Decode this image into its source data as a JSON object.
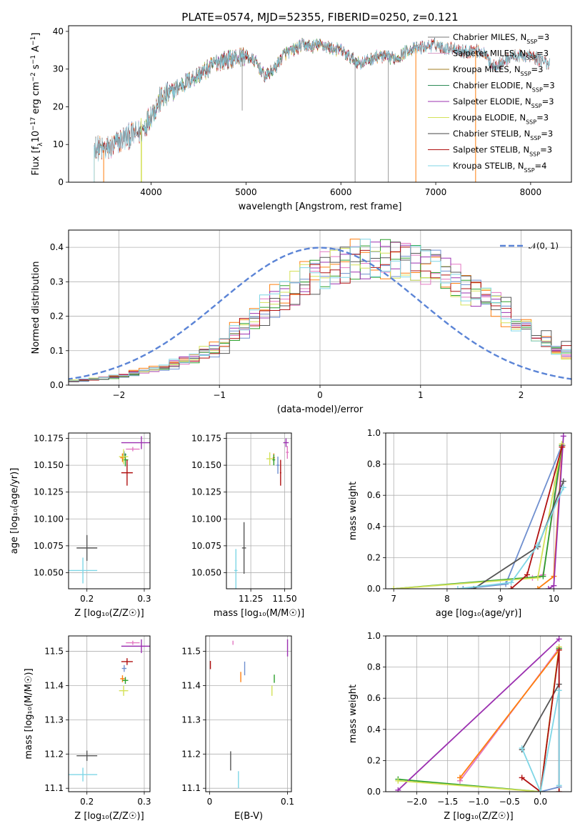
{
  "figure": {
    "title": "PLATE=0574, MJD=52355, FIBERID=0250, z=0.121"
  },
  "legend_entries": [
    {
      "text": "Chabrier MILES, N",
      "sub": "SSP",
      "suffix": "=3",
      "color": "#7a7a7a"
    },
    {
      "text": "Salpeter MILES, N",
      "sub": "SSP",
      "suffix": "=3",
      "color": "#d9a0c8"
    },
    {
      "text": "Kroupa MILES, N",
      "sub": "SSP",
      "suffix": "=3",
      "color": "#a07d20"
    },
    {
      "text": "Chabrier ELODIE, N",
      "sub": "SSP",
      "suffix": "=3",
      "color": "#2e8b57"
    },
    {
      "text": "Salpeter ELODIE, N",
      "sub": "SSP",
      "suffix": "=3",
      "color": "#9b30b0"
    },
    {
      "text": "Kroupa ELODIE, N",
      "sub": "SSP",
      "suffix": "=3",
      "color": "#d4e157"
    },
    {
      "text": "Chabrier STELIB, N",
      "sub": "SSP",
      "suffix": "=3",
      "color": "#444444"
    },
    {
      "text": "Salpeter STELIB, N",
      "sub": "SSP",
      "suffix": "=3",
      "color": "#b01010"
    },
    {
      "text": "Kroupa STELIB, N",
      "sub": "SSP",
      "suffix": "=4",
      "color": "#7fd6e6"
    }
  ],
  "colors": {
    "chabrier_miles": "#6f8fcf",
    "salpeter_miles": "#e377c2",
    "kroupa_miles": "#ff7f0e",
    "chabrier_elodie": "#2ca02c",
    "salpeter_elodie": "#9b30b0",
    "kroupa_elodie": "#d4e157",
    "chabrier_stelib": "#555555",
    "salpeter_stelib": "#b01010",
    "kroupa_stelib": "#7fd6e6",
    "gaussian": "#5b84d6"
  },
  "chart_data": [
    {
      "id": "spectrum",
      "type": "line",
      "xlabel": "wavelength [Angstrom, rest frame]",
      "ylabel_parts": [
        "Flux [f",
        "λ",
        "10",
        "−17",
        " erg cm",
        "−2",
        " s",
        "−1",
        " A",
        "−1",
        "]"
      ],
      "xlim": [
        3130,
        8430
      ],
      "ylim": [
        0,
        41.5
      ],
      "xticks": [
        4000,
        5000,
        6000,
        7000,
        8000
      ],
      "yticks": [
        0,
        10,
        20,
        30,
        40
      ],
      "grid": false,
      "continuum_x": [
        3400,
        3500,
        3600,
        3700,
        3800,
        3900,
        4000,
        4100,
        4200,
        4300,
        4400,
        4500,
        4600,
        4700,
        4800,
        4900,
        5000,
        5100,
        5200,
        5300,
        5400,
        5500,
        5600,
        5700,
        5800,
        5900,
        6000,
        6100,
        6200,
        6300,
        6400,
        6500,
        6600,
        6700,
        6800,
        6900,
        7000,
        7100,
        7200,
        7300,
        7400,
        7500,
        7600,
        7700,
        7800,
        7900,
        8000,
        8100,
        8200
      ],
      "continuum_y": [
        9.5,
        8.5,
        9.5,
        11.5,
        12.5,
        13.5,
        18,
        22,
        23.5,
        25.5,
        27,
        28.5,
        30,
        32,
        32.5,
        33,
        33.5,
        32,
        28,
        30,
        34,
        35,
        36.5,
        36,
        36.5,
        35.5,
        35,
        33,
        31.5,
        32.5,
        33.5,
        33,
        33,
        35,
        35.5,
        36,
        36.5,
        35.5,
        35.5,
        34.5,
        35,
        34.5,
        31,
        31.5,
        33.5,
        33.5,
        33.5,
        32.5,
        31.5
      ],
      "series": [
        {
          "key": "chabrier_miles",
          "start": 3500,
          "end": 8100
        },
        {
          "key": "salpeter_miles",
          "start": 3400,
          "end": 8100
        },
        {
          "key": "kroupa_miles",
          "start": 3400,
          "end": 8100
        },
        {
          "key": "chabrier_elodie",
          "start": 3900,
          "end": 6800
        },
        {
          "key": "salpeter_elodie",
          "start": 3900,
          "end": 6800
        },
        {
          "key": "kroupa_elodie",
          "start": 3900,
          "end": 6800
        },
        {
          "key": "chabrier_stelib",
          "start": 3400,
          "end": 8200
        },
        {
          "key": "salpeter_stelib",
          "start": 3400,
          "end": 8200
        },
        {
          "key": "kroupa_stelib",
          "start": 3400,
          "end": 8200
        }
      ],
      "spikes": [
        4960,
        6150,
        6500,
        6790,
        7420
      ]
    },
    {
      "id": "residuals",
      "type": "line",
      "xlabel": "(data-model)/error",
      "ylabel": "Normed distribution",
      "xlim": [
        -2.5,
        2.5
      ],
      "ylim": [
        0,
        0.45
      ],
      "xticks": [
        -2,
        -1,
        0,
        1,
        2
      ],
      "xtick_labels": [
        "−2",
        "−1",
        "0",
        "1",
        "2"
      ],
      "yticks": [
        0.0,
        0.1,
        0.2,
        0.3,
        0.4
      ],
      "grid": true,
      "legend": {
        "label": "𝒩(0, 1)",
        "placement": "top-right"
      },
      "gaussian": {
        "mean": 0,
        "sigma": 1
      },
      "bin_width": 0.1,
      "mean_histogram_x": [
        -2.5,
        -2.0,
        -1.5,
        -1.0,
        -0.5,
        0.0,
        0.5,
        1.0,
        1.5,
        2.0,
        2.5
      ],
      "mean_histogram_y": [
        0.01,
        0.025,
        0.055,
        0.11,
        0.23,
        0.33,
        0.37,
        0.35,
        0.28,
        0.18,
        0.09
      ]
    },
    {
      "id": "age_vs_z",
      "type": "scatter",
      "xlabel": "Z [log₁₀(Z/Z☉)]",
      "ylabel": "age  [log₁₀(age/yr)]",
      "xlim": [
        0.168,
        0.31
      ],
      "ylim": [
        10.035,
        10.18
      ],
      "xticks": [
        0.2,
        0.3
      ],
      "yticks": [
        10.05,
        10.075,
        10.1,
        10.125,
        10.15,
        10.175
      ],
      "ytick_labels": [
        "10.050",
        "10.075",
        "10.100",
        "10.125",
        "10.150",
        "10.175"
      ],
      "grid": true,
      "points": [
        {
          "key": "chabrier_miles",
          "x": 0.265,
          "y": 10.16,
          "xerr": 0.004,
          "yerr": 0.003
        },
        {
          "key": "salpeter_miles",
          "x": 0.28,
          "y": 10.165,
          "xerr": 0.012,
          "yerr": 0.002
        },
        {
          "key": "kroupa_miles",
          "x": 0.262,
          "y": 10.157,
          "xerr": 0.004,
          "yerr": 0.004
        },
        {
          "key": "chabrier_elodie",
          "x": 0.267,
          "y": 10.155,
          "xerr": 0.005,
          "yerr": 0.006
        },
        {
          "key": "salpeter_elodie",
          "x": 0.295,
          "y": 10.171,
          "xerr": 0.035,
          "yerr": 0.006
        },
        {
          "key": "kroupa_elodie",
          "x": 0.264,
          "y": 10.158,
          "xerr": 0.008,
          "yerr": 0.007
        },
        {
          "key": "chabrier_stelib",
          "x": 0.2,
          "y": 10.073,
          "xerr": 0.018,
          "yerr": 0.012
        },
        {
          "key": "salpeter_stelib",
          "x": 0.27,
          "y": 10.143,
          "xerr": 0.01,
          "yerr": 0.012
        },
        {
          "key": "kroupa_stelib",
          "x": 0.193,
          "y": 10.052,
          "xerr": 0.025,
          "yerr": 0.012
        }
      ]
    },
    {
      "id": "age_vs_mass",
      "type": "scatter",
      "xlabel": "mass [log₁₀(M/M☉)]",
      "xlim": [
        11.07,
        11.55
      ],
      "ylim": [
        10.035,
        10.18
      ],
      "xticks": [
        11.25,
        11.5
      ],
      "xtick_labels": [
        "11.25",
        "11.50"
      ],
      "yticks": [
        10.05,
        10.075,
        10.1,
        10.125,
        10.15,
        10.175
      ],
      "ytick_labels": [
        "10.050",
        "10.075",
        "10.100",
        "10.125",
        "10.150",
        "10.175"
      ],
      "grid": true,
      "points": [
        {
          "key": "chabrier_miles",
          "x": 11.45,
          "y": 10.15,
          "xerr": 0.01,
          "yerr": 0.008
        },
        {
          "key": "salpeter_miles",
          "x": 11.52,
          "y": 10.162,
          "xerr": 0.01,
          "yerr": 0.006
        },
        {
          "key": "kroupa_miles",
          "x": 11.42,
          "y": 10.157,
          "xerr": 0.008,
          "yerr": 0.004
        },
        {
          "key": "chabrier_elodie",
          "x": 11.42,
          "y": 10.155,
          "xerr": 0.01,
          "yerr": 0.005
        },
        {
          "key": "salpeter_elodie",
          "x": 11.51,
          "y": 10.171,
          "xerr": 0.02,
          "yerr": 0.004
        },
        {
          "key": "kroupa_elodie",
          "x": 11.39,
          "y": 10.156,
          "xerr": 0.025,
          "yerr": 0.006
        },
        {
          "key": "chabrier_stelib",
          "x": 11.2,
          "y": 10.073,
          "xerr": 0.015,
          "yerr": 0.024
        },
        {
          "key": "salpeter_stelib",
          "x": 11.47,
          "y": 10.143,
          "xerr": 0.005,
          "yerr": 0.012
        },
        {
          "key": "kroupa_stelib",
          "x": 11.14,
          "y": 10.052,
          "xerr": 0.012,
          "yerr": 0.02
        }
      ]
    },
    {
      "id": "mass_vs_z",
      "type": "scatter",
      "xlabel": "Z [log₁₀(Z/Z☉)]",
      "ylabel": "mass [log₁₀(M/M☉)]",
      "xlim": [
        0.168,
        0.31
      ],
      "ylim": [
        11.09,
        11.545
      ],
      "xticks": [
        0.2,
        0.3
      ],
      "yticks": [
        11.1,
        11.2,
        11.3,
        11.4,
        11.5
      ],
      "grid": true,
      "points": [
        {
          "key": "chabrier_miles",
          "x": 0.265,
          "y": 11.45,
          "xerr": 0.004,
          "yerr": 0.01
        },
        {
          "key": "salpeter_miles",
          "x": 0.28,
          "y": 11.525,
          "xerr": 0.012,
          "yerr": 0.006
        },
        {
          "key": "kroupa_miles",
          "x": 0.262,
          "y": 11.42,
          "xerr": 0.004,
          "yerr": 0.01
        },
        {
          "key": "chabrier_elodie",
          "x": 0.267,
          "y": 11.415,
          "xerr": 0.005,
          "yerr": 0.01
        },
        {
          "key": "salpeter_elodie",
          "x": 0.295,
          "y": 11.515,
          "xerr": 0.035,
          "yerr": 0.02
        },
        {
          "key": "kroupa_elodie",
          "x": 0.264,
          "y": 11.385,
          "xerr": 0.008,
          "yerr": 0.015
        },
        {
          "key": "chabrier_stelib",
          "x": 0.2,
          "y": 11.195,
          "xerr": 0.018,
          "yerr": 0.015
        },
        {
          "key": "salpeter_stelib",
          "x": 0.27,
          "y": 11.47,
          "xerr": 0.01,
          "yerr": 0.01
        },
        {
          "key": "kroupa_stelib",
          "x": 0.193,
          "y": 11.14,
          "xerr": 0.025,
          "yerr": 0.02
        }
      ]
    },
    {
      "id": "mass_vs_ebv",
      "type": "scatter",
      "xlabel": "E(B-V)",
      "xlim": [
        -0.005,
        0.105
      ],
      "ylim": [
        11.09,
        11.545
      ],
      "xticks": [
        0.0,
        0.1
      ],
      "yticks": [
        11.1,
        11.2,
        11.3,
        11.4,
        11.5
      ],
      "grid": true,
      "points": [
        {
          "key": "chabrier_miles",
          "x": 0.045,
          "y": 11.45,
          "yerr": 0.02
        },
        {
          "key": "salpeter_miles",
          "x": 0.03,
          "y": 11.525,
          "yerr": 0.006
        },
        {
          "key": "kroupa_miles",
          "x": 0.04,
          "y": 11.425,
          "yerr": 0.015
        },
        {
          "key": "chabrier_elodie",
          "x": 0.083,
          "y": 11.42,
          "yerr": 0.012
        },
        {
          "key": "salpeter_elodie",
          "x": 0.1,
          "y": 11.51,
          "yerr": 0.025
        },
        {
          "key": "kroupa_elodie",
          "x": 0.08,
          "y": 11.385,
          "yerr": 0.015
        },
        {
          "key": "chabrier_stelib",
          "x": 0.027,
          "y": 11.18,
          "yerr": 0.028
        },
        {
          "key": "salpeter_stelib",
          "x": 0.001,
          "y": 11.46,
          "yerr": 0.012
        },
        {
          "key": "kroupa_stelib",
          "x": 0.037,
          "y": 11.125,
          "yerr": 0.025
        }
      ]
    },
    {
      "id": "mass_weight_vs_age",
      "type": "line",
      "xlabel": "age  [log₁₀(age/yr)]",
      "ylabel": "mass weight",
      "xlim": [
        6.85,
        10.33
      ],
      "ylim": [
        0,
        1.0
      ],
      "xticks": [
        7,
        8,
        9,
        10
      ],
      "yticks": [
        0.0,
        0.2,
        0.4,
        0.6,
        0.8,
        1.0
      ],
      "grid": true,
      "series": [
        {
          "key": "chabrier_miles",
          "x": [
            8.3,
            9.1,
            10.15
          ],
          "y": [
            0.0,
            0.03,
            0.92
          ]
        },
        {
          "key": "salpeter_miles",
          "x": [
            9.6,
            9.8,
            10.17
          ],
          "y": [
            0.07,
            0.09,
            0.92
          ]
        },
        {
          "key": "kroupa_miles",
          "x": [
            9.7,
            10.0,
            10.16
          ],
          "y": [
            0.0,
            0.08,
            0.91
          ]
        },
        {
          "key": "chabrier_elodie",
          "x": [
            7.0,
            9.8,
            10.15
          ],
          "y": [
            0.0,
            0.08,
            0.92
          ]
        },
        {
          "key": "salpeter_elodie",
          "x": [
            9.9,
            10.0,
            10.18
          ],
          "y": [
            0.0,
            0.02,
            0.98
          ]
        },
        {
          "key": "kroupa_elodie",
          "x": [
            7.0,
            9.7,
            10.15
          ],
          "y": [
            0.0,
            0.07,
            0.93
          ]
        },
        {
          "key": "chabrier_stelib",
          "x": [
            8.5,
            9.7,
            10.18
          ],
          "y": [
            0.0,
            0.27,
            0.69
          ]
        },
        {
          "key": "salpeter_stelib",
          "x": [
            9.2,
            9.5,
            10.15
          ],
          "y": [
            0.0,
            0.09,
            0.91
          ]
        },
        {
          "key": "kroupa_stelib",
          "x": [
            8.2,
            9.2,
            9.7,
            10.18
          ],
          "y": [
            0.0,
            0.04,
            0.28,
            0.65
          ]
        }
      ]
    },
    {
      "id": "mass_weight_vs_z",
      "type": "line",
      "xlabel": "Z [log₁₀(Z/Z☉)]",
      "ylabel": "mass weight",
      "xlim": [
        -2.5,
        0.5
      ],
      "ylim": [
        0,
        1.0
      ],
      "xticks": [
        -2.0,
        -1.5,
        -1.0,
        -0.5,
        0.0
      ],
      "xtick_labels": [
        "−2.0",
        "−1.5",
        "−1.0",
        "−0.5",
        "0.0"
      ],
      "yticks": [
        0.0,
        0.2,
        0.4,
        0.6,
        0.8,
        1.0
      ],
      "grid": true,
      "series": [
        {
          "key": "chabrier_miles",
          "x": [
            0.0,
            0.3,
            0.3
          ],
          "y": [
            0.0,
            0.03,
            0.92
          ]
        },
        {
          "key": "salpeter_miles",
          "x": [
            -1.3,
            0.3
          ],
          "y": [
            0.07,
            0.92
          ]
        },
        {
          "key": "kroupa_miles",
          "x": [
            -1.3,
            0.3
          ],
          "y": [
            0.09,
            0.91
          ]
        },
        {
          "key": "chabrier_elodie",
          "x": [
            -2.3,
            0.0,
            0.3
          ],
          "y": [
            0.08,
            0.0,
            0.92
          ]
        },
        {
          "key": "salpeter_elodie",
          "x": [
            -2.3,
            0.3
          ],
          "y": [
            0.01,
            0.98
          ]
        },
        {
          "key": "kroupa_elodie",
          "x": [
            -2.3,
            0.0,
            0.3
          ],
          "y": [
            0.07,
            0.0,
            0.93
          ]
        },
        {
          "key": "chabrier_stelib",
          "x": [
            -0.3,
            0.3
          ],
          "y": [
            0.27,
            0.69
          ]
        },
        {
          "key": "salpeter_stelib",
          "x": [
            -0.3,
            0.0,
            0.3,
            0.3
          ],
          "y": [
            0.09,
            0.0,
            0.91,
            0.0
          ]
        },
        {
          "key": "kroupa_stelib",
          "x": [
            -0.3,
            0.0,
            0.3,
            0.3
          ],
          "y": [
            0.28,
            0.0,
            0.65,
            0.04
          ]
        }
      ]
    }
  ]
}
